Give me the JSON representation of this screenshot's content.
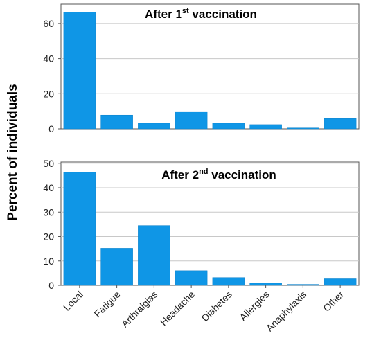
{
  "chart_data": {
    "ylabel": "Percent of individuals",
    "color": "#0f96e6",
    "categories": [
      "Local",
      "Fatigue",
      "Arthralgias",
      "Headache",
      "Diabetes",
      "Allergies",
      "Anaphylaxis",
      "Other"
    ],
    "panels": [
      {
        "type": "bar",
        "title": {
          "before": "After 1",
          "sup": "st",
          "after": " vaccination"
        },
        "values": [
          66.5,
          7.8,
          3.2,
          9.8,
          3.2,
          2.4,
          0.5,
          5.8
        ],
        "ylim": [
          0,
          71
        ],
        "yticks": [
          0,
          20,
          40,
          60
        ],
        "grid": true
      },
      {
        "type": "bar",
        "title": {
          "before": "After 2",
          "sup": "nd",
          "after": " vaccination"
        },
        "values": [
          46.3,
          15.2,
          24.5,
          6.0,
          3.2,
          0.9,
          0.4,
          2.7
        ],
        "ylim": [
          0,
          50.5
        ],
        "yticks": [
          0,
          10,
          20,
          30,
          40,
          50
        ],
        "grid": true
      }
    ]
  }
}
